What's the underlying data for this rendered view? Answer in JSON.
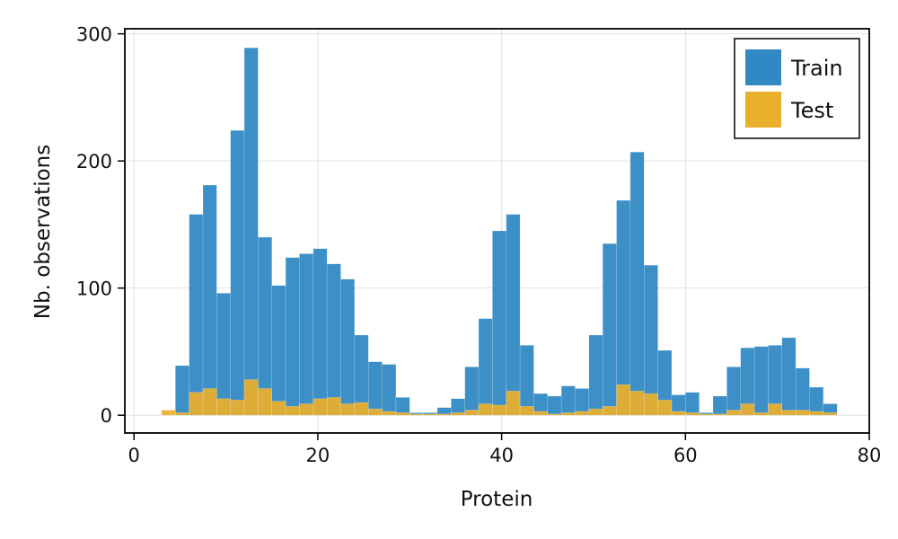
{
  "chart_data": {
    "type": "bar",
    "title": "",
    "xlabel": "Protein",
    "ylabel": "Nb. observations",
    "xlim": [
      -1,
      80
    ],
    "ylim": [
      -14,
      304
    ],
    "xticks": [
      0,
      20,
      40,
      60,
      80
    ],
    "yticks": [
      0,
      100,
      200,
      300
    ],
    "grid": true,
    "legend": "top-right",
    "bin_width": 1.5,
    "series": [
      {
        "name": "Train",
        "color": "#3189c4",
        "bin_starts": [
          4.5,
          6,
          7.5,
          9,
          10.5,
          12,
          13.5,
          15,
          16.5,
          18,
          19.5,
          21,
          22.5,
          24,
          25.5,
          27,
          28.5,
          30,
          31.5,
          33,
          34.5,
          36,
          37.5,
          39,
          40.5,
          42,
          43.5,
          45,
          46.5,
          48,
          49.5,
          51,
          52.5,
          54,
          55.5,
          57,
          58.5,
          60,
          61.5,
          63,
          64.5,
          66,
          67.5,
          69,
          70.5,
          72,
          73.5,
          75
        ],
        "values": [
          39,
          158,
          181,
          96,
          224,
          289,
          140,
          102,
          124,
          127,
          131,
          119,
          107,
          63,
          42,
          40,
          14,
          2,
          2,
          6,
          13,
          38,
          76,
          145,
          158,
          55,
          17,
          15,
          23,
          21,
          63,
          135,
          169,
          207,
          118,
          51,
          16,
          18,
          2,
          15,
          38,
          53,
          54,
          55,
          61,
          37,
          22,
          9
        ]
      },
      {
        "name": "Test",
        "color": "#ebb02b",
        "bin_starts": [
          3,
          4.5,
          6,
          7.5,
          9,
          10.5,
          12,
          13.5,
          15,
          16.5,
          18,
          19.5,
          21,
          22.5,
          24,
          25.5,
          27,
          28.5,
          30,
          31.5,
          33,
          34.5,
          36,
          37.5,
          39,
          40.5,
          42,
          43.5,
          45,
          46.5,
          48,
          49.5,
          51,
          52.5,
          54,
          55.5,
          57,
          58.5,
          60,
          61.5,
          63,
          64.5,
          66,
          67.5,
          69,
          70.5,
          72,
          73.5,
          75
        ],
        "values": [
          4,
          2,
          18,
          21,
          13,
          12,
          28,
          21,
          11,
          7,
          9,
          13,
          14,
          9,
          10,
          5,
          3,
          2,
          1,
          1,
          1,
          2,
          4,
          9,
          8,
          19,
          7,
          3,
          1,
          2,
          3,
          5,
          7,
          24,
          19,
          17,
          12,
          3,
          2,
          1,
          1,
          4,
          9,
          2,
          9,
          4,
          4,
          3,
          2
        ]
      }
    ]
  }
}
